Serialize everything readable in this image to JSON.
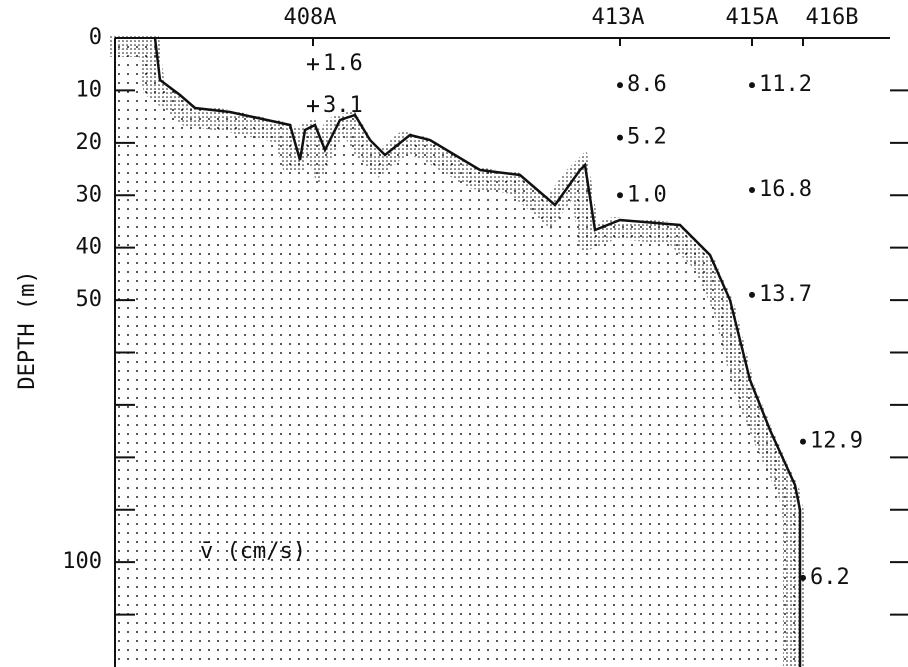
{
  "chart_data": {
    "type": "section",
    "ylabel": "DEPTH (m)",
    "annotation": "v̄ (cm/s)",
    "ylim": [
      0,
      120
    ],
    "yticks": [
      0,
      10,
      20,
      30,
      40,
      50,
      100
    ],
    "minor_yticks": [
      60,
      70,
      80,
      90,
      110
    ],
    "series": [
      {
        "name": "408A",
        "marker": "+",
        "depths": [
          5,
          13
        ],
        "values": [
          1.6,
          3.1
        ],
        "value_labels": [
          "1.6",
          "3.1"
        ]
      },
      {
        "name": "413A",
        "marker": "dot",
        "depths": [
          9,
          19,
          30
        ],
        "values": [
          8.6,
          5.2,
          1.0
        ],
        "value_labels": [
          "8.6",
          "5.2",
          "1.0"
        ]
      },
      {
        "name": "415A",
        "marker": "dot",
        "depths": [
          9,
          29,
          49
        ],
        "values": [
          11.2,
          16.8,
          13.7
        ],
        "value_labels": [
          "11.2",
          "16.8",
          "13.7"
        ]
      },
      {
        "name": "416B",
        "marker": "dot",
        "depths": [
          77,
          103
        ],
        "values": [
          12.9,
          6.2
        ],
        "value_labels": [
          "12.9",
          "6.2"
        ]
      }
    ]
  }
}
